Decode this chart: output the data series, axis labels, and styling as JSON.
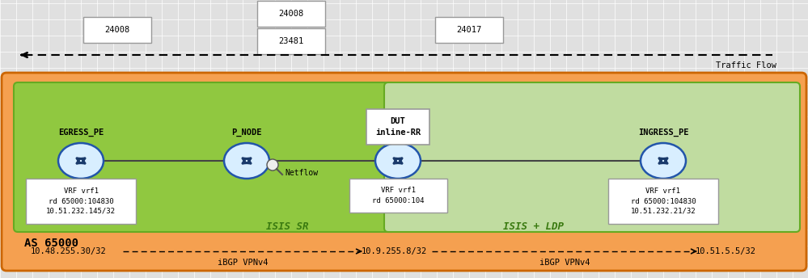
{
  "bg_outer_color": "#F5A050",
  "bg_inner_sr_color": "#90C840",
  "bg_inner_ldp_color": "#C0DCA0",
  "outer_border_color": "#CC6600",
  "inner_border_color": "#66AA22",
  "fig_bg_color": "#E0E0E0",
  "white": "#FFFFFF",
  "gray_border": "#999999",
  "dark_border": "#555555",
  "ip_egress": "10.48.255.30/32",
  "ip_dut": "10.9.255.8/32",
  "ip_ingress": "10.51.5.5/32",
  "ibgp_label": "iBGP VPNv4",
  "vrf_egress": "VRF vrf1\nrd 65000:104830\n10.51.232.145/32",
  "vrf_dut": "VRF vrf1\nrd 65000:104",
  "vrf_ingress": "VRF vrf1\nrd 65000:104830\n10.51.232.21/32",
  "isis_sr_label": "ISIS SR",
  "isis_ldp_label": "ISIS + LDP",
  "as_label": "AS 65000",
  "traffic_flow_label": "Traffic Flow",
  "netflow_label": "Netflow",
  "dut_label": "DUT\ninline-RR",
  "egress_label": "EGRESS_PE",
  "pnode_label": "P_NODE",
  "ingress_label": "INGRESS_PE",
  "router_face": "#D8EEFF",
  "router_edge": "#2255AA",
  "arrow_color": "#1a3a6b",
  "node_line_color": "#444444",
  "label_24008_left": "24008",
  "label_23481": "23481",
  "label_24008_mid": "24008",
  "label_24017": "24017"
}
